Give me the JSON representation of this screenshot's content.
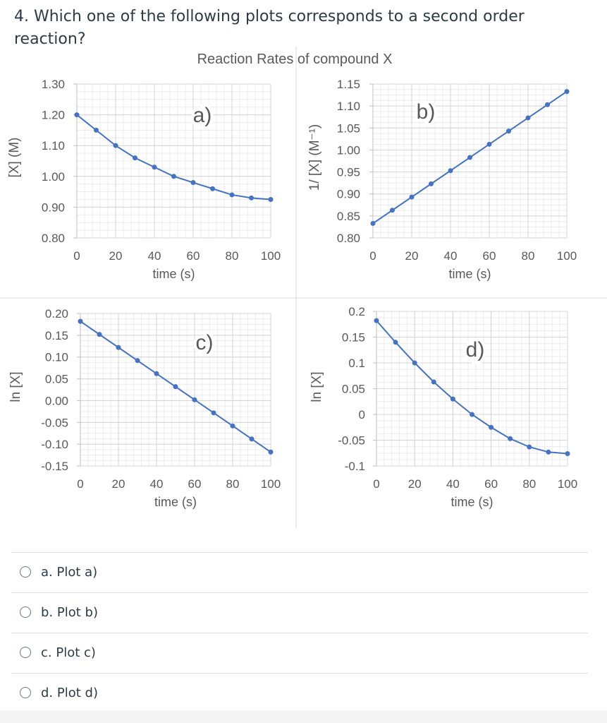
{
  "question": {
    "text": "4. Which one of the following plots corresponds to a second order reaction?"
  },
  "figure": {
    "title": "Reaction Rates of compound X"
  },
  "options": [
    {
      "label": "a. Plot a)"
    },
    {
      "label": "b. Plot b)"
    },
    {
      "label": "c. Plot c)"
    },
    {
      "label": "d. Plot d)"
    }
  ],
  "chart_data": [
    {
      "type": "line",
      "panel_label": "a)",
      "xlabel": "time (s)",
      "ylabel": "[X] (M)",
      "xlim": [
        0,
        100
      ],
      "ylim": [
        0.8,
        1.3
      ],
      "xticks": [
        "0",
        "20",
        "40",
        "60",
        "80",
        "100"
      ],
      "yticks": [
        "1.30",
        "1.20",
        "1.10",
        "1.00",
        "0.90",
        "0.80"
      ],
      "x": [
        0,
        10,
        20,
        30,
        40,
        50,
        60,
        70,
        80,
        90,
        100
      ],
      "y": [
        1.2,
        1.15,
        1.1,
        1.06,
        1.03,
        1.0,
        0.98,
        0.96,
        0.94,
        0.93,
        0.925
      ],
      "color": "#4472c4",
      "grid": true
    },
    {
      "type": "line",
      "panel_label": "b)",
      "xlabel": "time (s)",
      "ylabel": "1/ [X] (M⁻¹)",
      "xlim": [
        0,
        100
      ],
      "ylim": [
        0.8,
        1.15
      ],
      "xticks": [
        "0",
        "20",
        "40",
        "60",
        "80",
        "100"
      ],
      "yticks": [
        "1.15",
        "1.10",
        "1.05",
        "1.00",
        "0.95",
        "0.90",
        "0.85",
        "0.80"
      ],
      "x": [
        0,
        10,
        20,
        30,
        40,
        50,
        60,
        70,
        80,
        90,
        100
      ],
      "y": [
        0.833,
        0.863,
        0.893,
        0.923,
        0.953,
        0.983,
        1.013,
        1.043,
        1.073,
        1.103,
        1.133
      ],
      "color": "#4472c4",
      "grid": true
    },
    {
      "type": "line",
      "panel_label": "c)",
      "xlabel": "time (s)",
      "ylabel": "ln [X]",
      "xlim": [
        0,
        100
      ],
      "ylim": [
        -0.15,
        0.2
      ],
      "xticks": [
        "0",
        "20",
        "40",
        "60",
        "80",
        "100"
      ],
      "yticks": [
        "0.20",
        "0.15",
        "0.10",
        "0.05",
        "0.00",
        "-0.05",
        "-0.10",
        "-0.15"
      ],
      "x": [
        0,
        10,
        20,
        30,
        40,
        50,
        60,
        70,
        80,
        90,
        100
      ],
      "y": [
        0.182,
        0.152,
        0.122,
        0.092,
        0.062,
        0.032,
        0.002,
        -0.028,
        -0.058,
        -0.088,
        -0.118
      ],
      "color": "#4472c4",
      "grid": true
    },
    {
      "type": "line",
      "panel_label": "d)",
      "xlabel": "time (s)",
      "ylabel": "ln [X]",
      "xlim": [
        0,
        100
      ],
      "ylim": [
        -0.1,
        0.2
      ],
      "xticks": [
        "0",
        "20",
        "40",
        "60",
        "80",
        "100"
      ],
      "yticks": [
        "0.2",
        "0.15",
        "0.1",
        "0.05",
        "0",
        "-0.05",
        "-0.1"
      ],
      "x": [
        0,
        10,
        20,
        30,
        40,
        50,
        60,
        70,
        80,
        90,
        100
      ],
      "y": [
        0.182,
        0.14,
        0.1,
        0.063,
        0.03,
        0.0,
        -0.025,
        -0.047,
        -0.063,
        -0.073,
        -0.076
      ],
      "color": "#4472c4",
      "grid": true
    }
  ]
}
